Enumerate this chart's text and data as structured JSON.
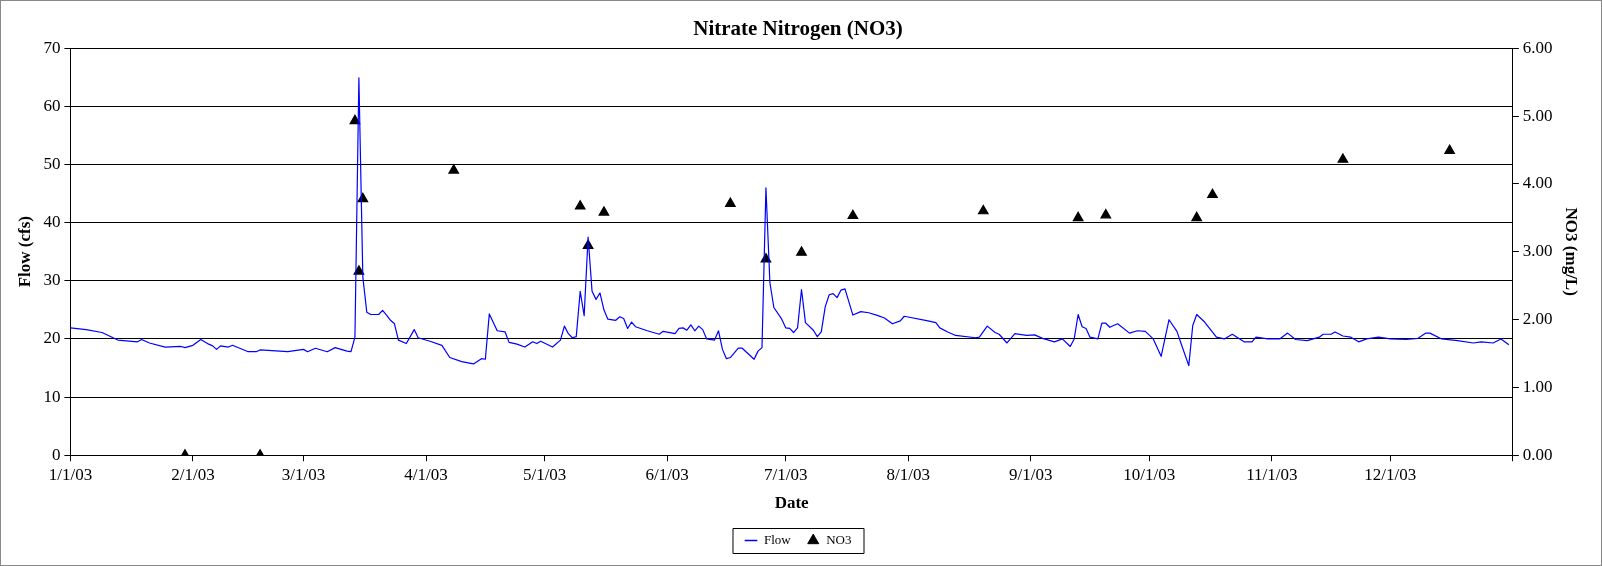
{
  "chart_data": {
    "type": "line",
    "title": "Nitrate Nitrogen (NO3)",
    "xlabel": "Date",
    "ylabel": "Flow (cfs)",
    "y2label": "NO3 (mg/L)",
    "xlim": [
      "2003-01-01",
      "2004-01-01"
    ],
    "xticks": [
      {
        "value": "2003-01-01",
        "label": "1/1/03"
      },
      {
        "value": "2003-02-01",
        "label": "2/1/03"
      },
      {
        "value": "2003-03-01",
        "label": "3/1/03"
      },
      {
        "value": "2003-04-01",
        "label": "4/1/03"
      },
      {
        "value": "2003-05-01",
        "label": "5/1/03"
      },
      {
        "value": "2003-06-01",
        "label": "6/1/03"
      },
      {
        "value": "2003-07-01",
        "label": "7/1/03"
      },
      {
        "value": "2003-08-01",
        "label": "8/1/03"
      },
      {
        "value": "2003-09-01",
        "label": "9/1/03"
      },
      {
        "value": "2003-10-01",
        "label": "10/1/03"
      },
      {
        "value": "2003-11-01",
        "label": "11/1/03"
      },
      {
        "value": "2003-12-01",
        "label": "12/1/03"
      },
      {
        "value": "2004-01-01",
        "label": null
      }
    ],
    "ylim": [
      0,
      70
    ],
    "yticks": [
      0,
      10,
      20,
      30,
      40,
      50,
      60,
      70
    ],
    "y2lim": [
      0,
      6
    ],
    "y2ticks": [
      {
        "value": 0,
        "label": "0.00"
      },
      {
        "value": 1,
        "label": "1.00"
      },
      {
        "value": 2,
        "label": "2.00"
      },
      {
        "value": 3,
        "label": "3.00"
      },
      {
        "value": 4,
        "label": "4.00"
      },
      {
        "value": 5,
        "label": "5.00"
      },
      {
        "value": 6,
        "label": "6.00"
      }
    ],
    "grid": "y",
    "legend": "bottom",
    "series": [
      {
        "name": "Flow",
        "color": "#0000ff",
        "marker": "none",
        "x": [
          "2003-01-01",
          "2003-01-05",
          "2003-01-09",
          "2003-01-13",
          "2003-01-18",
          "2003-01-19",
          "2003-01-21",
          "2003-01-25",
          "2003-01-29",
          "2003-01-30",
          "2003-02-01",
          "2003-02-03",
          "2003-02-05",
          "2003-02-06",
          "2003-02-07",
          "2003-02-08",
          "2003-02-10",
          "2003-02-11",
          "2003-02-15",
          "2003-02-17",
          "2003-02-18",
          "2003-02-25",
          "2003-03-01",
          "2003-03-02",
          "2003-03-04",
          "2003-03-07",
          "2003-03-09",
          "2003-03-12",
          "2003-03-13",
          "2003-03-14",
          "2003-03-15",
          "2003-03-16",
          "2003-03-17",
          "2003-03-18",
          "2003-03-20",
          "2003-03-21",
          "2003-03-22",
          "2003-03-23",
          "2003-03-24",
          "2003-03-25",
          "2003-03-27",
          "2003-03-29",
          "2003-03-30",
          "2003-04-02",
          "2003-04-05",
          "2003-04-07",
          "2003-04-10",
          "2003-04-13",
          "2003-04-15",
          "2003-04-16",
          "2003-04-17",
          "2003-04-19",
          "2003-04-21",
          "2003-04-22",
          "2003-04-24",
          "2003-04-26",
          "2003-04-28",
          "2003-04-29",
          "2003-04-30",
          "2003-05-03",
          "2003-05-05",
          "2003-05-06",
          "2003-05-07",
          "2003-05-08",
          "2003-05-09",
          "2003-05-10",
          "2003-05-11",
          "2003-05-12",
          "2003-05-13",
          "2003-05-14",
          "2003-05-15",
          "2003-05-16",
          "2003-05-17",
          "2003-05-19",
          "2003-05-20",
          "2003-05-21",
          "2003-05-22",
          "2003-05-23",
          "2003-05-24",
          "2003-05-27",
          "2003-05-30",
          "2003-05-31",
          "2003-06-03",
          "2003-06-04",
          "2003-06-05",
          "2003-06-06",
          "2003-06-07",
          "2003-06-08",
          "2003-06-09",
          "2003-06-10",
          "2003-06-11",
          "2003-06-13",
          "2003-06-14",
          "2003-06-15",
          "2003-06-16",
          "2003-06-17",
          "2003-06-19",
          "2003-06-20",
          "2003-06-23",
          "2003-06-24",
          "2003-06-25",
          "2003-06-26",
          "2003-06-27",
          "2003-06-28",
          "2003-06-30",
          "2003-07-01",
          "2003-07-02",
          "2003-07-03",
          "2003-07-04",
          "2003-07-05",
          "2003-07-06",
          "2003-07-08",
          "2003-07-09",
          "2003-07-10",
          "2003-07-11",
          "2003-07-12",
          "2003-07-13",
          "2003-07-14",
          "2003-07-15",
          "2003-07-16",
          "2003-07-18",
          "2003-07-20",
          "2003-07-22",
          "2003-07-24",
          "2003-07-26",
          "2003-07-28",
          "2003-07-30",
          "2003-07-31",
          "2003-08-06",
          "2003-08-08",
          "2003-08-09",
          "2003-08-11",
          "2003-08-13",
          "2003-08-18",
          "2003-08-19",
          "2003-08-21",
          "2003-08-23",
          "2003-08-24",
          "2003-08-26",
          "2003-08-28",
          "2003-08-31",
          "2003-09-02",
          "2003-09-04",
          "2003-09-07",
          "2003-09-09",
          "2003-09-11",
          "2003-09-12",
          "2003-09-13",
          "2003-09-14",
          "2003-09-15",
          "2003-09-16",
          "2003-09-18",
          "2003-09-19",
          "2003-09-20",
          "2003-09-21",
          "2003-09-23",
          "2003-09-26",
          "2003-09-28",
          "2003-09-30",
          "2003-10-02",
          "2003-10-04",
          "2003-10-06",
          "2003-10-08",
          "2003-10-09",
          "2003-10-11",
          "2003-10-12",
          "2003-10-13",
          "2003-10-15",
          "2003-10-18",
          "2003-10-20",
          "2003-10-22",
          "2003-10-25",
          "2003-10-27",
          "2003-10-28",
          "2003-10-31",
          "2003-11-03",
          "2003-11-05",
          "2003-11-07",
          "2003-11-10",
          "2003-11-13",
          "2003-11-14",
          "2003-11-16",
          "2003-11-17",
          "2003-11-19",
          "2003-11-21",
          "2003-11-23",
          "2003-11-25",
          "2003-11-28",
          "2003-12-01",
          "2003-12-05",
          "2003-12-08",
          "2003-12-10",
          "2003-12-11",
          "2003-12-14",
          "2003-12-18",
          "2003-12-22",
          "2003-12-24",
          "2003-12-27",
          "2003-12-29",
          "2003-12-31"
        ],
        "values": [
          21.9,
          21.6,
          21.1,
          19.8,
          19.5,
          19.9,
          19.3,
          18.6,
          18.7,
          18.5,
          18.9,
          19.9,
          19.1,
          18.8,
          18.2,
          18.8,
          18.6,
          18.9,
          17.8,
          17.8,
          18.1,
          17.8,
          18.2,
          17.8,
          18.4,
          17.8,
          18.5,
          17.9,
          17.8,
          20.3,
          64.9,
          30.6,
          24.6,
          24.2,
          24.2,
          24.9,
          24.1,
          23.2,
          22.6,
          19.8,
          19.2,
          21.6,
          20.2,
          19.6,
          18.9,
          16.8,
          16.1,
          15.7,
          16.6,
          16.5,
          24.3,
          21.4,
          21.2,
          19.4,
          19.1,
          18.6,
          19.5,
          19.2,
          19.6,
          18.6,
          19.8,
          22.2,
          20.9,
          20.2,
          20.4,
          28.2,
          24,
          37.5,
          28.2,
          26.8,
          27.9,
          25,
          23.4,
          23.2,
          23.8,
          23.5,
          21.8,
          22.9,
          22.1,
          21.4,
          20.8,
          21.3,
          20.9,
          21.8,
          21.9,
          21.5,
          22.4,
          21.4,
          22.2,
          21.6,
          20,
          19.8,
          21.4,
          18.2,
          16.6,
          16.8,
          18.4,
          18.4,
          16.5,
          17.9,
          18.5,
          46,
          29.7,
          25.4,
          23.4,
          21.9,
          21.8,
          21.1,
          21.9,
          28.5,
          22.8,
          21.5,
          20.4,
          21.2,
          25.5,
          27.6,
          27.8,
          27.1,
          28.4,
          28.6,
          24.1,
          24.7,
          24.5,
          24.1,
          23.6,
          22.6,
          23.1,
          23.9,
          23.1,
          22.8,
          21.9,
          21.2,
          20.6,
          20.2,
          20.3,
          22.2,
          21.1,
          20.8,
          19.3,
          20.9,
          20.6,
          20.7,
          20.1,
          19.5,
          20,
          18.7,
          20,
          24.2,
          22.1,
          21.8,
          20.3,
          20,
          22.7,
          22.7,
          22,
          22.6,
          21,
          21.4,
          21.3,
          20,
          17,
          23.3,
          21.3,
          19.3,
          15.4,
          22.3,
          24.2,
          22.9,
          20.3,
          20,
          20.8,
          19.5,
          19.5,
          20.3,
          20,
          20,
          21,
          19.9,
          19.7,
          20.3,
          20.8,
          20.8,
          21.2,
          20.5,
          20.3,
          19.5,
          20,
          20.3,
          20,
          19.9,
          20.1,
          21,
          21,
          20,
          19.7,
          19.3,
          19.5,
          19.3,
          20,
          19
        ]
      },
      {
        "name": "NO3",
        "type": "scatter",
        "axis": "y2",
        "color": "#000000",
        "marker": "triangle",
        "x": [
          "2003-01-30",
          "2003-02-18",
          "2003-03-14",
          "2003-03-15",
          "2003-03-16",
          "2003-04-08",
          "2003-05-10",
          "2003-05-12",
          "2003-05-16",
          "2003-06-17",
          "2003-06-26",
          "2003-07-05",
          "2003-07-18",
          "2003-08-20",
          "2003-09-13",
          "2003-09-20",
          "2003-10-13",
          "2003-10-17",
          "2003-11-19",
          "2003-12-16"
        ],
        "values": [
          0,
          0,
          4.93,
          2.71,
          3.78,
          4.2,
          3.67,
          3.09,
          3.58,
          3.71,
          2.89,
          2.99,
          3.53,
          3.6,
          3.5,
          3.54,
          3.5,
          3.84,
          4.36,
          4.49
        ]
      }
    ]
  }
}
